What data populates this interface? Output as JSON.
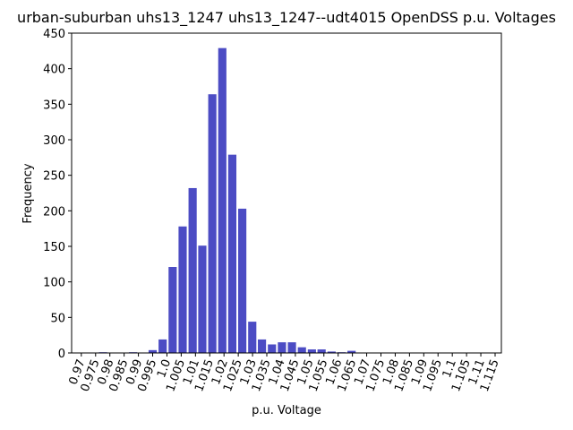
{
  "chart_data": {
    "type": "bar",
    "title": "urban-suburban uhs13_1247 uhs13_1247--udt4015 OpenDSS p.u. Voltages",
    "x_label": "p.u. Voltage",
    "y_label": "Frequency",
    "color": "#4c4cc4",
    "x": [
      0.9706,
      0.9741,
      0.9776,
      0.9811,
      0.9846,
      0.9881,
      0.9915,
      0.995,
      0.9985,
      1.002,
      1.0055,
      1.009,
      1.0124,
      1.0159,
      1.0194,
      1.0229,
      1.0264,
      1.0299,
      1.0333,
      1.0368,
      1.0403,
      1.0438,
      1.0473,
      1.0508,
      1.0542,
      1.0577,
      1.0612,
      1.0647
    ],
    "values": [
      0,
      0,
      1,
      0,
      0,
      1,
      0,
      4,
      19,
      121,
      178,
      232,
      151,
      364,
      429,
      279,
      203,
      44,
      19,
      12,
      15,
      15,
      8,
      5,
      5,
      2,
      1,
      3
    ],
    "xlim": [
      0.9666,
      1.1172
    ],
    "xticks": [
      0.97,
      0.975,
      0.98,
      0.985,
      0.99,
      0.995,
      {
        "value": 1.0,
        "label": "1.0"
      },
      1.005,
      1.01,
      1.015,
      1.02,
      1.025,
      1.03,
      1.035,
      1.04,
      1.045,
      1.05,
      1.055,
      1.06,
      1.065,
      1.07,
      1.075,
      1.08,
      1.085,
      1.09,
      1.095,
      1.1,
      1.105,
      1.11,
      1.115
    ],
    "ylim": [
      0,
      450
    ],
    "yticks": [
      0,
      50,
      100,
      150,
      200,
      250,
      300,
      350,
      400,
      450
    ]
  }
}
